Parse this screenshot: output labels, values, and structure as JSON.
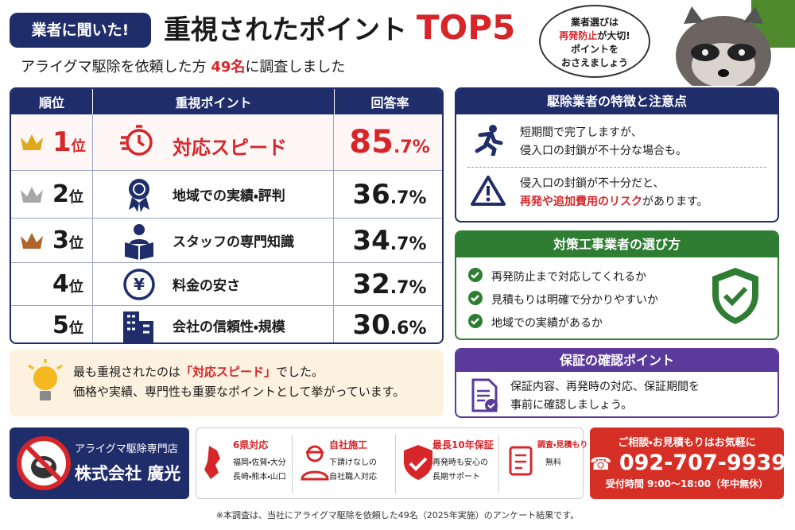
{
  "header": {
    "badge": "業者に聞いた!",
    "title": "重視されたポイント",
    "title_highlight": "TOP5",
    "subtitle": [
      "アライグマ駆除を依頼した方",
      "49名",
      "に調査しました"
    ],
    "bubble": [
      "業者選びは",
      "再発防止",
      "が大切!",
      "ポイントを",
      "おさえましょう"
    ]
  },
  "table": {
    "headers": [
      "順位",
      "重視ポイント",
      "回答率"
    ],
    "rows": [
      {
        "rank": "1",
        "unit": "位",
        "point": "対応スピード",
        "rate": "85.7%"
      },
      {
        "rank": "2",
        "unit": "位",
        "point": "地域での実績・評判",
        "rate": "36.7%"
      },
      {
        "rank": "3",
        "unit": "位",
        "point": "スタッフの専門知識",
        "rate": "34.7%"
      },
      {
        "rank": "4",
        "unit": "位",
        "point": "料金の安さ",
        "rate": "32.7%"
      },
      {
        "rank": "5",
        "unit": "位",
        "point": "会社の信頼性・規模",
        "rate": "30.6%"
      }
    ]
  },
  "insight": {
    "line1": [
      "最も重視されたのは",
      "「対応スピード」",
      "でした。"
    ],
    "line2": "価格や実績、専門性も重要なポイントとして挙がっています。"
  },
  "panels": [
    {
      "title": "駆除業者の特徴と注意点",
      "items": [
        [
          "短期間で完了しますが、",
          "侵入口の封鎖が不十分な場合も。"
        ],
        [
          "侵入口の封鎖が不十分だと、",
          "再発や追加費用のリスク",
          "があります。"
        ]
      ]
    },
    {
      "title": "対策工事業者の選び方",
      "items": [
        "再発防止まで対応してくれるか",
        "見積もりは明確で分かりやすいか",
        "地域での実績があるか"
      ]
    },
    {
      "title": "保証の確認ポイント",
      "items": [
        "保証内容、再発時の対応、保証期間を",
        "事前に確認しましょう。"
      ]
    }
  ],
  "footer": {
    "company": [
      "アライグマ駆除専門店",
      "株式会社 廣光"
    ],
    "features": [
      {
        "title": "6県対応",
        "lines": [
          "福岡・佐賀・大分",
          "長崎・熊本・山口"
        ]
      },
      {
        "title": "自社施工",
        "lines": [
          "下請けなしの",
          "自社職人対応"
        ]
      },
      {
        "title": "最長10年保証",
        "lines": [
          "再発時も安心の",
          "長期サポート"
        ]
      },
      {
        "title": "調査・見積もり",
        "lines": [
          "無料"
        ]
      }
    ],
    "contact": {
      "lead": "ご相談・お見積もりはお気軽に",
      "phone": "092-707-9939",
      "hours": "受付時間 9:00～18:00（年中無休）"
    }
  },
  "note": "※本調査は、当社にアライグマ駆除を依頼した49名（2025年実施）のアンケート結果です。"
}
